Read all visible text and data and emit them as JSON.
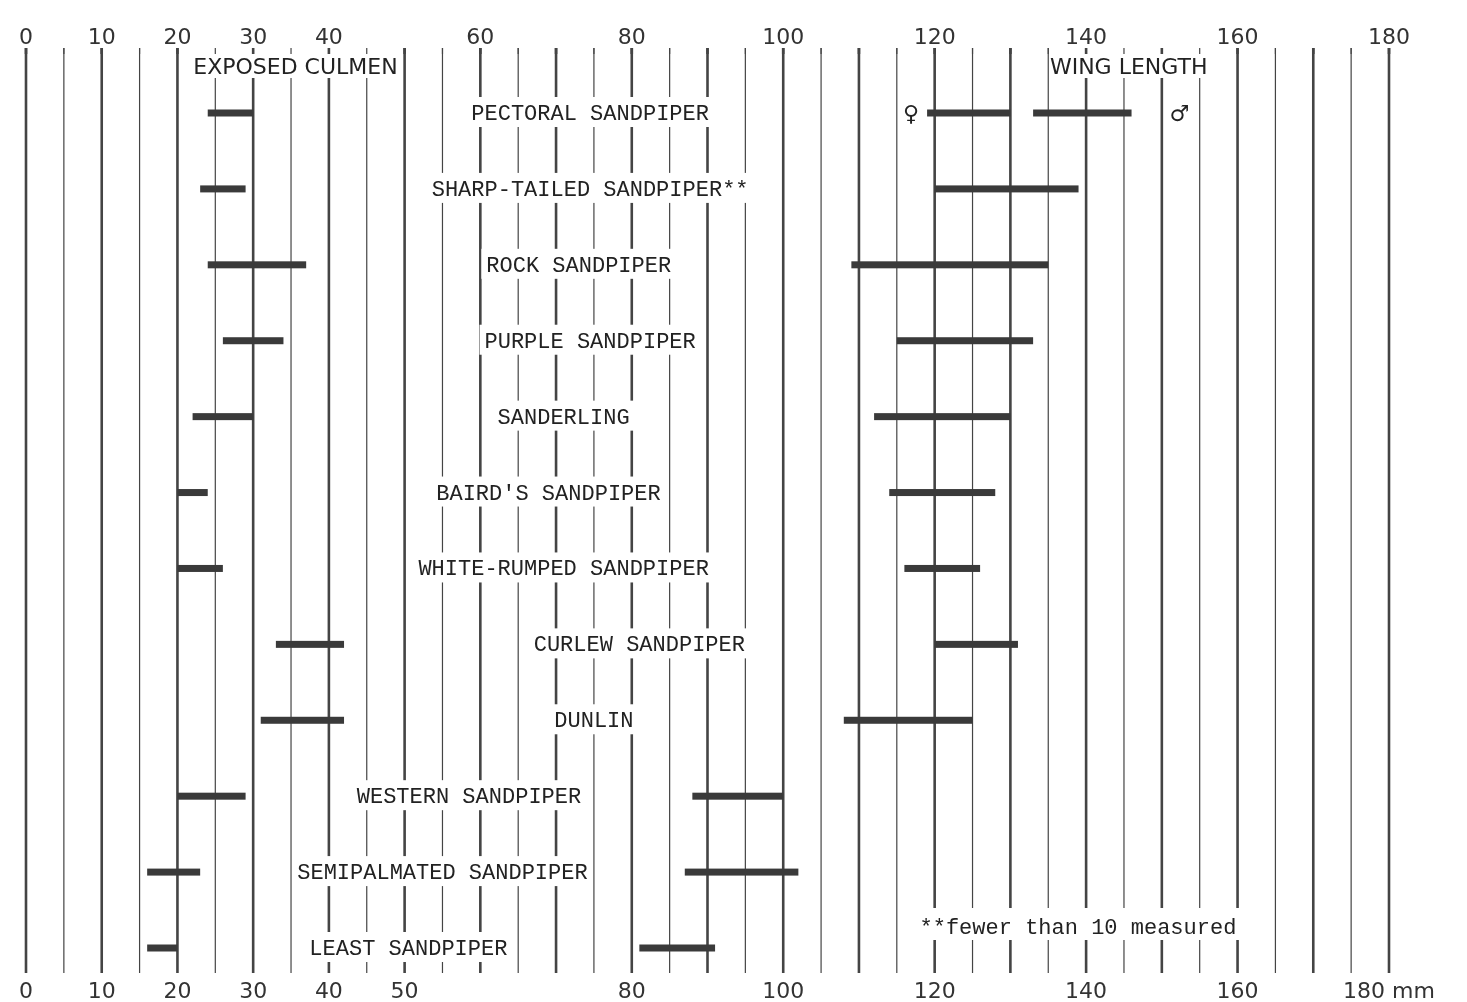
{
  "chart_data": {
    "type": "bar",
    "orientation": "horizontal",
    "grid": true,
    "legend": "top",
    "categories": [
      "PECTORAL SANDPIPER",
      "SHARP-TAILED SANDPIPER**",
      "ROCK SANDPIPER",
      "PURPLE SANDPIPER",
      "SANDERLING",
      "BAIRD'S SANDPIPER",
      "WHITE-RUMPED SANDPIPER",
      "CURLEW SANDPIPER",
      "DUNLIN",
      "WESTERN SANDPIPER",
      "SEMIPALMATED SANDPIPER",
      "LEAST SANDPIPER"
    ],
    "series": [
      {
        "name": "EXPOSED CULMEN",
        "color": "#3a3a3a",
        "base": [
          24,
          23,
          24,
          26,
          22,
          20,
          20,
          33,
          31,
          20,
          16,
          16
        ],
        "values": [
          6,
          6,
          13,
          8,
          8,
          4,
          6,
          9,
          11,
          9,
          7,
          4
        ]
      },
      {
        "name": "WING LENGTH",
        "color": "#3a3a3a",
        "base": [
          119,
          120,
          109,
          115,
          112,
          114,
          116,
          120,
          108,
          88,
          87,
          81
        ],
        "values": [
          11,
          19,
          26,
          18,
          18,
          14,
          10,
          11,
          17,
          12,
          15,
          10
        ]
      },
      {
        "color": "#3a3a3a",
        "base": [
          133,
          null,
          null,
          null,
          null,
          null,
          null,
          null,
          null,
          null,
          null,
          null
        ],
        "values": [
          13,
          null,
          null,
          null,
          null,
          null,
          null,
          null,
          null,
          null,
          null,
          null
        ]
      }
    ],
    "xlim": [
      0,
      180
    ],
    "xticks": [
      0,
      {
        "value": 5,
        "label": null
      },
      10,
      {
        "value": 15,
        "label": null
      },
      20,
      {
        "value": 25,
        "label": null
      },
      30,
      {
        "value": 35,
        "label": null
      },
      40,
      {
        "value": 45,
        "label": null
      },
      50,
      {
        "value": 55,
        "label": null
      },
      {
        "value": 60,
        "label": null
      },
      {
        "value": 65,
        "label": null
      },
      {
        "value": 70,
        "label": null
      },
      {
        "value": 75,
        "label": null
      },
      80,
      {
        "value": 85,
        "label": null
      },
      {
        "value": 90,
        "label": null
      },
      {
        "value": 95,
        "label": null
      },
      100,
      {
        "value": 105,
        "label": null
      },
      {
        "value": 110,
        "label": null
      },
      {
        "value": 115,
        "label": null
      },
      120,
      {
        "value": 125,
        "label": null
      },
      140,
      {
        "value": 130,
        "label": null
      },
      {
        "value": 135,
        "label": null
      },
      {
        "value": 145,
        "label": null
      },
      {
        "value": 150,
        "label": null
      },
      {
        "value": 155,
        "label": null
      },
      160,
      {
        "value": 165,
        "label": null
      },
      {
        "value": 170,
        "label": null
      },
      {
        "value": 175,
        "label": null
      },
      {
        "value": 180,
        "label": "180 mm"
      }
    ],
    "x2lim": [
      0,
      180
    ],
    "x2ticks": [
      0,
      {
        "value": 5,
        "label": null
      },
      10,
      {
        "value": 15,
        "label": null
      },
      20,
      {
        "value": 25,
        "label": null
      },
      30,
      {
        "value": 35,
        "label": null
      },
      40,
      {
        "value": 45,
        "label": null
      },
      {
        "value": 50,
        "label": null
      },
      {
        "value": 55,
        "label": null
      },
      60,
      {
        "value": 65,
        "label": null
      },
      {
        "value": 70,
        "label": null
      },
      {
        "value": 75,
        "label": null
      },
      80,
      {
        "value": 85,
        "label": null
      },
      {
        "value": 90,
        "label": null
      },
      {
        "value": 95,
        "label": null
      },
      100,
      {
        "value": 105,
        "label": null
      },
      {
        "value": 110,
        "label": null
      },
      {
        "value": 115,
        "label": null
      },
      120,
      {
        "value": 125,
        "label": null
      },
      {
        "value": 130,
        "label": null
      },
      {
        "value": 135,
        "label": null
      },
      140,
      {
        "value": 145,
        "label": null
      },
      {
        "value": 150,
        "label": null
      },
      {
        "value": 155,
        "label": null
      },
      160,
      {
        "value": 165,
        "label": null
      },
      {
        "value": 170,
        "label": null
      },
      {
        "value": 175,
        "label": null
      },
      180
    ],
    "annotations": [
      {
        "text": "♀",
        "x": 119,
        "y": "PECTORAL SANDPIPER"
      },
      {
        "text": "♂",
        "x": 146,
        "y": "PECTORAL SANDPIPER"
      },
      "**fewer than 10 measured"
    ]
  }
}
